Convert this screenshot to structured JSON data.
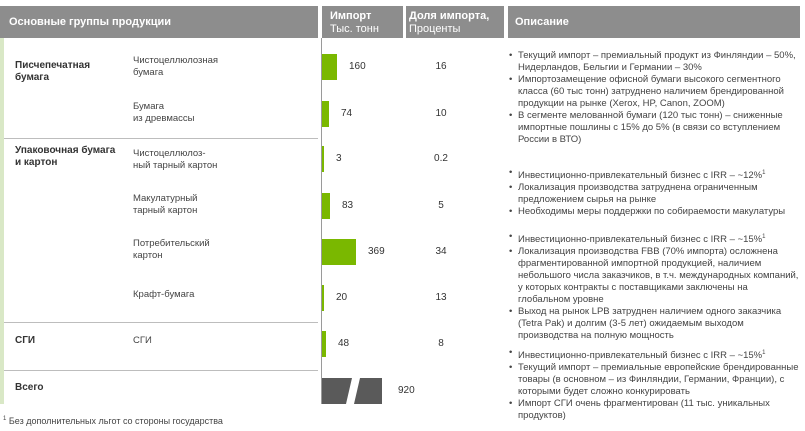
{
  "header": {
    "groups": "Основные группы продукции",
    "import_title": "Импорт",
    "import_unit": "Тыс. тонн",
    "share_title": "Доля импорта,",
    "share_unit": "Проценты",
    "description": "Описание"
  },
  "groups": [
    {
      "name_line1": "Писчепечатная",
      "name_line2": "бумага"
    },
    {
      "name_line1": "Упаковочная бумага",
      "name_line2": "и картон"
    },
    {
      "name_line1": "СГИ",
      "name_line2": ""
    },
    {
      "name_line1": "Всего",
      "name_line2": ""
    }
  ],
  "rows": [
    {
      "sub_line1": "Чистоцеллюлозная",
      "sub_line2": "бумага",
      "import": 160,
      "share": "16"
    },
    {
      "sub_line1": "Бумага",
      "sub_line2": "из древмассы",
      "import": 74,
      "share": "10"
    },
    {
      "sub_line1": "Чистоцеллюлоз-",
      "sub_line2": "ный тарный картон",
      "import": 3,
      "share": "0.2"
    },
    {
      "sub_line1": "Макулатурный",
      "sub_line2": "тарный картон",
      "import": 83,
      "share": "5"
    },
    {
      "sub_line1": "Потребительский",
      "sub_line2": "картон",
      "import": 369,
      "share": "34"
    },
    {
      "sub_line1": "Крафт-бумага",
      "sub_line2": "",
      "import": 20,
      "share": "13"
    },
    {
      "sub_line1": "СГИ",
      "sub_line2": "",
      "import": 48,
      "share": "8"
    }
  ],
  "total": {
    "import": 920
  },
  "descriptions": {
    "paper": [
      "Текущий импорт – премиальный продукт из Финляндии – 50%, Нидерландов, Бельгии и Германии – 30%",
      "Импортозамещение офисной бумаги высокого сегментного класса (60 тыс тонн) затруднено наличием брендированной продукции на рынке (Xerox, HP, Canon, ZOOM)",
      "В сегменте мелованной бумаги (120 тыс тонн) – сниженные импортные пошлины с 15% до 5% (в связи со вступлением России в ВТО)"
    ],
    "container": [
      "Инвестиционно-привлекательный бизнес с IRR – ~12%",
      "Локализация производства затруднена ограниченным предложением сырья на рынке",
      "Необходимы меры поддержки по собираемости макулатуры"
    ],
    "consumer": [
      "Инвестиционно-привлекательный бизнес с IRR – ~15%",
      "Локализация производства FBB (70% импорта) осложнена фрагментированной импортной продукцией, наличием небольшого числа заказчиков, в т.ч. международных компаний, у которых контракты с поставщиками заключены на глобальном уровне",
      "Выход на рынок LPB затруднен наличием одного заказчика (Tetra Pak) и долгим (3-5 лет) ожидаемым выходом производства на полную мощность"
    ],
    "sgi": [
      "Инвестиционно-привлекательный бизнес с IRR – ~15%",
      "Текущий импорт – премиальные европейские брендированные товары (в основном – из Финляндии, Германии, Франции), с которыми будет сложно конкурировать",
      "Импорт СГИ очень фрагментирован (11 тыс. уникальных продуктов)"
    ]
  },
  "footnote_mark": "1",
  "footnote": "Без дополнительных льгот со стороны государства",
  "colors": {
    "header": "#8d8d8d",
    "bar": "#7ab800",
    "band": "#d9e8c6",
    "total_bar": "#5a5a5a"
  }
}
